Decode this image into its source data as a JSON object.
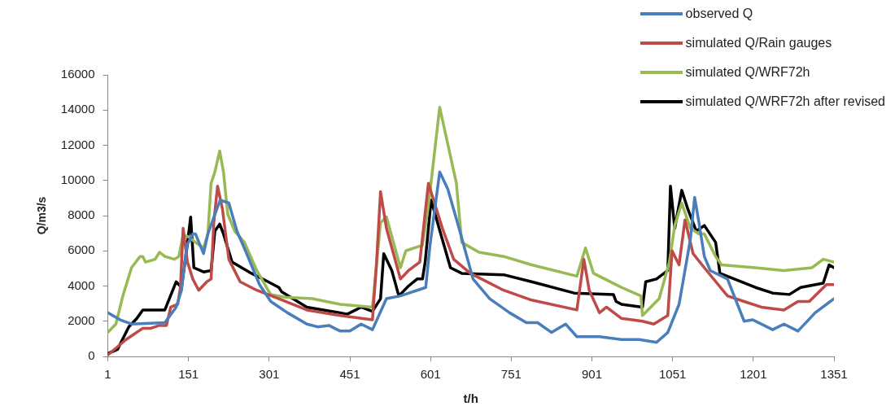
{
  "chart_data": {
    "type": "line",
    "xlabel": "t/h",
    "ylabel": "Q/m3/s",
    "xlim": [
      1,
      1351
    ],
    "xticks": [
      1,
      151,
      301,
      451,
      601,
      751,
      901,
      1051,
      1201,
      1351
    ],
    "ylim": [
      0,
      16000
    ],
    "yticks": [
      0,
      2000,
      4000,
      6000,
      8000,
      10000,
      12000,
      14000,
      16000
    ],
    "grid": false,
    "legend": "top right",
    "marker": "none",
    "line_style": "solid",
    "series": [
      {
        "name": "observed Q",
        "color": "#4a7ebb",
        "x": [
          1,
          24,
          45,
          107,
          128,
          138,
          148,
          159,
          164,
          179,
          187,
          202,
          210,
          226,
          241,
          257,
          283,
          304,
          335,
          371,
          391,
          412,
          433,
          451,
          472,
          493,
          519,
          545,
          592,
          600,
          618,
          633,
          654,
          680,
          711,
          748,
          779,
          800,
          826,
          852,
          873,
          915,
          956,
          989,
          1021,
          1042,
          1063,
          1084,
          1092,
          1100,
          1110,
          1121,
          1153,
          1184,
          1200,
          1237,
          1258,
          1284,
          1316,
          1351
        ],
        "values": [
          2480,
          2080,
          1840,
          1920,
          2800,
          3760,
          6320,
          6960,
          6960,
          5840,
          6960,
          8240,
          8880,
          8720,
          7120,
          6000,
          4080,
          3120,
          2480,
          1840,
          1680,
          1760,
          1440,
          1440,
          1840,
          1520,
          3280,
          3440,
          3920,
          6320,
          10480,
          9520,
          7280,
          4400,
          3280,
          2480,
          1920,
          1920,
          1360,
          1840,
          1120,
          1120,
          960,
          960,
          800,
          1360,
          2960,
          6640,
          9040,
          7600,
          5680,
          4880,
          4400,
          2000,
          2080,
          1520,
          1840,
          1440,
          2480,
          3280
        ]
      },
      {
        "name": "simulated Q/Rain gauges",
        "color": "#be4b48",
        "x": [
          1,
          35,
          66,
          81,
          97,
          110,
          118,
          131,
          136,
          141,
          149,
          159,
          170,
          185,
          193,
          198,
          205,
          214,
          226,
          247,
          278,
          319,
          371,
          433,
          493,
          500,
          508,
          519,
          545,
          560,
          581,
          597,
          605,
          623,
          644,
          675,
          737,
          789,
          873,
          886,
          896,
          915,
          928,
          956,
          995,
          1016,
          1042,
          1050,
          1063,
          1074,
          1089,
          1110,
          1153,
          1184,
          1216,
          1258,
          1284,
          1305,
          1337,
          1351
        ],
        "values": [
          80,
          960,
          1600,
          1600,
          1760,
          1760,
          2800,
          2960,
          3920,
          7280,
          5360,
          4400,
          3760,
          4240,
          4400,
          7600,
          9680,
          8400,
          5520,
          4240,
          3760,
          3280,
          2640,
          2320,
          2080,
          5040,
          9360,
          7280,
          4400,
          4880,
          5360,
          9840,
          9040,
          7280,
          5520,
          4720,
          3760,
          3200,
          2640,
          5520,
          3760,
          2480,
          2800,
          2160,
          2000,
          1840,
          2320,
          6000,
          5200,
          7760,
          5840,
          5040,
          3440,
          3120,
          2800,
          2640,
          3120,
          3120,
          4080,
          4080
        ]
      },
      {
        "name": "simulated Q/WRF72h",
        "color": "#98b954",
        "x": [
          1,
          16,
          29,
          45,
          61,
          66,
          71,
          89,
          97,
          107,
          125,
          133,
          141,
          151,
          164,
          179,
          187,
          193,
          200,
          209,
          216,
          224,
          237,
          255,
          278,
          299,
          304,
          330,
          381,
          433,
          493,
          508,
          519,
          545,
          555,
          586,
          597,
          618,
          633,
          649,
          659,
          691,
          737,
          789,
          873,
          889,
          904,
          925,
          956,
          992,
          995,
          1026,
          1045,
          1055,
          1068,
          1084,
          1100,
          1110,
          1131,
          1142,
          1205,
          1258,
          1310,
          1331,
          1351
        ],
        "values": [
          1360,
          1840,
          3440,
          5040,
          5680,
          5680,
          5360,
          5520,
          5920,
          5680,
          5520,
          5680,
          6880,
          6800,
          6480,
          6160,
          6960,
          9840,
          10480,
          11680,
          10480,
          8080,
          7120,
          6480,
          4880,
          3760,
          3520,
          3360,
          3280,
          2960,
          2800,
          7600,
          7920,
          5040,
          6000,
          6320,
          8560,
          14160,
          12080,
          9840,
          6480,
          5920,
          5680,
          5200,
          4560,
          6160,
          4720,
          4400,
          3920,
          3440,
          2320,
          3280,
          5360,
          7440,
          8720,
          7280,
          6960,
          6960,
          5680,
          5200,
          5040,
          4880,
          5040,
          5520,
          5360
        ]
      },
      {
        "name": "simulated Q/WRF72h after revised",
        "color": "#000000",
        "x": [
          1,
          19,
          40,
          55,
          66,
          107,
          128,
          138,
          148,
          155,
          161,
          179,
          193,
          200,
          209,
          216,
          232,
          268,
          299,
          319,
          324,
          371,
          402,
          433,
          446,
          472,
          493,
          508,
          514,
          529,
          542,
          560,
          576,
          586,
          591,
          602,
          623,
          638,
          659,
          737,
          789,
          868,
          941,
          946,
          956,
          995,
          1001,
          1021,
          1042,
          1047,
          1055,
          1068,
          1079,
          1095,
          1110,
          1131,
          1139,
          1205,
          1237,
          1268,
          1289,
          1331,
          1342,
          1351
        ],
        "values": [
          160,
          400,
          1680,
          2160,
          2640,
          2640,
          4240,
          3920,
          6160,
          7920,
          5040,
          4800,
          4880,
          7120,
          7520,
          6960,
          5360,
          4720,
          4240,
          3920,
          3680,
          2800,
          2640,
          2480,
          2400,
          2800,
          2560,
          3280,
          5840,
          4880,
          3440,
          4000,
          4400,
          4400,
          5360,
          8880,
          6640,
          5040,
          4720,
          4640,
          4240,
          3600,
          3520,
          3120,
          2960,
          2800,
          4240,
          4400,
          4880,
          9680,
          7280,
          9440,
          8400,
          7120,
          7440,
          6480,
          4720,
          3920,
          3600,
          3520,
          3920,
          4160,
          5200,
          5040
        ]
      }
    ]
  }
}
